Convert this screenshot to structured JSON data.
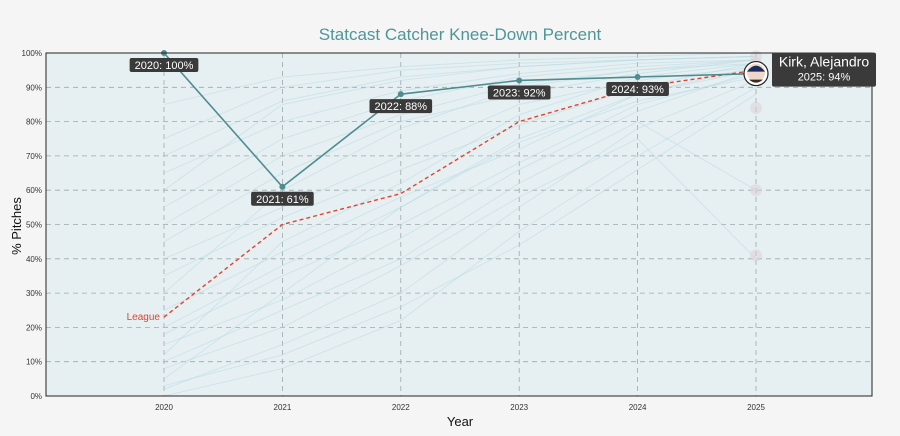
{
  "chart_data": {
    "type": "line",
    "title": "Statcast Catcher Knee-Down Percent",
    "xlabel": "Year",
    "ylabel": "% Pitches",
    "categories": [
      "2020",
      "2021",
      "2022",
      "2023",
      "2024",
      "2025"
    ],
    "ylim": [
      0,
      100
    ],
    "y_ticks": [
      "0%",
      "10%",
      "20%",
      "30%",
      "40%",
      "50%",
      "60%",
      "70%",
      "80%",
      "90%",
      "100%"
    ],
    "grid": true,
    "colors": {
      "background": "#e6f0f2",
      "player_line": "#4f8c8f",
      "league_line": "#e2432f",
      "other_lines": "#b9dbe3",
      "callout_bg": "#3a3a3a",
      "title": "#4f9698"
    },
    "series": [
      {
        "name": "Kirk, Alejandro",
        "values": [
          100,
          61,
          88,
          92,
          93,
          94
        ],
        "labels": [
          "2020: 100%",
          "2021: 61%",
          "2022: 88%",
          "2023: 92%",
          "2024: 93%",
          "2025: 94%"
        ]
      },
      {
        "name": "League",
        "values": [
          23,
          50,
          59,
          80,
          90,
          95
        ]
      }
    ],
    "background_series": [
      [
        5,
        30,
        55,
        75,
        88,
        96
      ],
      [
        12,
        45,
        62,
        82,
        93,
        97
      ],
      [
        30,
        60,
        78,
        90,
        95,
        98
      ],
      [
        2,
        15,
        30,
        55,
        78,
        92
      ],
      [
        60,
        85,
        92,
        96,
        98,
        99
      ],
      [
        40,
        55,
        70,
        85,
        92,
        96
      ],
      [
        0,
        8,
        22,
        48,
        70,
        90
      ],
      [
        18,
        35,
        50,
        68,
        85,
        94
      ],
      [
        75,
        90,
        95,
        97,
        98,
        99
      ],
      [
        50,
        70,
        82,
        91,
        95,
        97
      ],
      [
        10,
        25,
        40,
        62,
        80,
        60
      ],
      [
        25,
        42,
        58,
        72,
        88,
        95
      ],
      [
        85,
        93,
        96,
        98,
        99,
        100
      ],
      [
        35,
        52,
        66,
        79,
        90,
        97
      ],
      [
        8,
        20,
        38,
        58,
        75,
        40
      ],
      [
        45,
        65,
        80,
        88,
        94,
        98
      ],
      [
        3,
        12,
        26,
        44,
        66,
        88
      ],
      [
        65,
        80,
        89,
        94,
        97,
        98
      ],
      [
        20,
        38,
        55,
        74,
        86,
        93
      ],
      [
        55,
        75,
        86,
        93,
        96,
        98
      ],
      [
        15,
        28,
        46,
        66,
        83,
        95
      ],
      [
        70,
        86,
        93,
        96,
        98,
        99
      ]
    ],
    "callouts": [
      {
        "category": "2020",
        "value": 100,
        "text": "2020: 100%",
        "dx": 0,
        "dy": 12
      },
      {
        "category": "2021",
        "value": 61,
        "text": "2021: 61%",
        "dx": 0,
        "dy": 12
      },
      {
        "category": "2022",
        "value": 88,
        "text": "2022: 88%",
        "dx": 0,
        "dy": 12
      },
      {
        "category": "2023",
        "value": 92,
        "text": "2023: 92%",
        "dx": 0,
        "dy": 12
      },
      {
        "category": "2024",
        "value": 93,
        "text": "2024: 93%",
        "dx": 0,
        "dy": 12
      }
    ],
    "player_box": {
      "name": "Kirk, Alejandro",
      "detail": "2025: 94%"
    },
    "league_label": "League"
  }
}
